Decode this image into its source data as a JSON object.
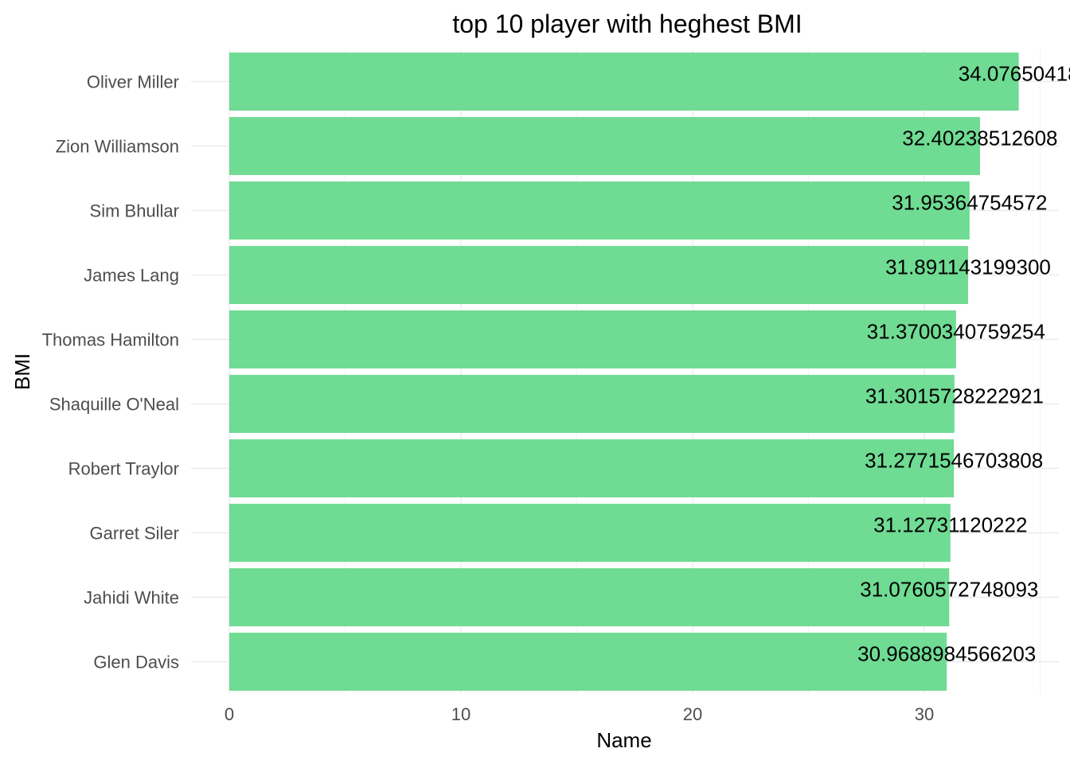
{
  "chart_data": {
    "type": "bar",
    "orientation": "horizontal",
    "title": "top 10 player with heghest BMI",
    "xlabel": "Name",
    "ylabel": "BMI",
    "categories": [
      "Oliver Miller",
      "Zion Williamson",
      "Sim Bhullar",
      "James Lang",
      "Thomas Hamilton",
      "Shaquille O'Neal",
      "Robert Traylor",
      "Garret Siler",
      "Jahidi White",
      "Glen Davis"
    ],
    "values": [
      34.0765,
      32.4024,
      31.9536,
      31.8911,
      31.37,
      31.3016,
      31.2772,
      31.1273,
      31.0761,
      30.9689
    ],
    "data_labels": [
      "34.07650418",
      "32.40238512608",
      "31.95364754572",
      "31.891143199300",
      "31.3700340759254",
      "31.3015728222921",
      "31.2771546703808",
      "31.12731120222",
      "31.0760572748093",
      "30.9688984566203"
    ],
    "xlim": [
      0,
      35
    ],
    "xticks": [
      0,
      10,
      20,
      30
    ],
    "xtick_labels": [
      "0",
      "10",
      "20",
      "30"
    ],
    "bar_color": "#6fdb93",
    "grid": true,
    "legend": "none"
  }
}
